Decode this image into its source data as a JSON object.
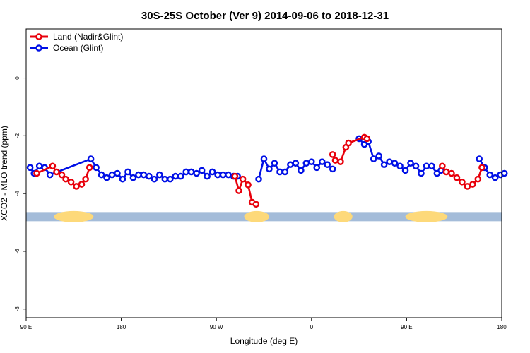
{
  "chart_data": {
    "type": "line",
    "title": "30S-25S October (Ver 9)   2014-09-06 to 2018-12-31",
    "xlabel": "Longitude (deg E)",
    "ylabel": "XCO2 - MLO trend (ppm)",
    "xlim": [
      90,
      450
    ],
    "ylim": [
      -8.3,
      1.7
    ],
    "xticks": [
      90,
      162,
      234,
      306,
      378,
      450
    ],
    "xtick_labels": [
      "90 E",
      "180",
      "90 W",
      "0",
      "90 E",
      "180"
    ],
    "yticks": [
      0,
      -2,
      -4,
      -6,
      -8
    ],
    "ytick_labels": [
      "0",
      "-2",
      "-4",
      "-6",
      "-8"
    ],
    "grid": false,
    "legend_position": "top-left",
    "land_band": {
      "y": -4.8,
      "ocean_color": "#a4bcd9",
      "land_color": "#fdd97a",
      "land_ranges": [
        [
          111,
          141
        ],
        [
          255,
          274
        ],
        [
          323,
          337
        ],
        [
          377,
          409
        ]
      ]
    },
    "series": [
      {
        "name": "Land (Nadir&Glint)",
        "color": "#e8000b",
        "segments": [
          [
            [
              98,
              -3.3
            ],
            [
              110,
              -3.05
            ],
            [
              113,
              -3.25
            ],
            [
              117,
              -3.35
            ],
            [
              120,
              -3.5
            ],
            [
              124,
              -3.6
            ],
            [
              128,
              -3.75
            ],
            [
              132,
              -3.68
            ],
            [
              135,
              -3.5
            ],
            [
              138,
              -3.1
            ]
          ],
          [
            [
              248,
              -3.4
            ],
            [
              251,
              -3.9
            ],
            [
              254,
              -3.5
            ],
            [
              258,
              -3.7
            ],
            [
              261,
              -4.3
            ],
            [
              264,
              -4.37
            ]
          ],
          [
            [
              322,
              -2.65
            ],
            [
              324,
              -2.85
            ],
            [
              328,
              -2.9
            ],
            [
              332,
              -2.4
            ],
            [
              334,
              -2.25
            ],
            [
              346,
              -2.05
            ],
            [
              348,
              -2.1
            ]
          ],
          [
            [
              405,
              -3.05
            ],
            [
              408,
              -3.25
            ],
            [
              412,
              -3.3
            ],
            [
              416,
              -3.45
            ],
            [
              420,
              -3.6
            ],
            [
              424,
              -3.75
            ],
            [
              428,
              -3.68
            ],
            [
              432,
              -3.5
            ],
            [
              435,
              -3.1
            ]
          ]
        ]
      },
      {
        "name": "Ocean (Glint)",
        "color": "#0010e6",
        "segments": [
          [
            [
              93,
              -3.1
            ],
            [
              96,
              -3.3
            ],
            [
              100,
              -3.05
            ],
            [
              104,
              -3.1
            ],
            [
              108,
              -3.35
            ],
            [
              139,
              -2.8
            ],
            [
              143,
              -3.1
            ],
            [
              147,
              -3.35
            ],
            [
              151,
              -3.45
            ],
            [
              155,
              -3.35
            ],
            [
              159,
              -3.3
            ],
            [
              163,
              -3.5
            ],
            [
              167,
              -3.25
            ],
            [
              171,
              -3.45
            ],
            [
              175,
              -3.35
            ],
            [
              179,
              -3.35
            ],
            [
              183,
              -3.4
            ],
            [
              187,
              -3.5
            ],
            [
              191,
              -3.35
            ],
            [
              195,
              -3.5
            ],
            [
              199,
              -3.5
            ],
            [
              203,
              -3.4
            ],
            [
              207,
              -3.4
            ],
            [
              211,
              -3.25
            ],
            [
              215,
              -3.25
            ],
            [
              219,
              -3.3
            ],
            [
              223,
              -3.2
            ],
            [
              227,
              -3.4
            ],
            [
              231,
              -3.25
            ],
            [
              235,
              -3.35
            ],
            [
              239,
              -3.35
            ],
            [
              243,
              -3.35
            ],
            [
              247,
              -3.4
            ],
            [
              250,
              -3.4
            ]
          ],
          [
            [
              266,
              -3.5
            ],
            [
              270,
              -2.8
            ],
            [
              274,
              -3.15
            ],
            [
              278,
              -2.95
            ],
            [
              282,
              -3.25
            ],
            [
              286,
              -3.25
            ],
            [
              290,
              -3.0
            ],
            [
              294,
              -2.95
            ],
            [
              298,
              -3.2
            ],
            [
              302,
              -2.95
            ],
            [
              306,
              -2.9
            ],
            [
              310,
              -3.1
            ],
            [
              314,
              -2.9
            ],
            [
              318,
              -3.0
            ],
            [
              322,
              -3.15
            ]
          ],
          [
            [
              342,
              -2.1
            ],
            [
              346,
              -2.3
            ],
            [
              349,
              -2.2
            ],
            [
              353,
              -2.8
            ],
            [
              357,
              -2.7
            ],
            [
              361,
              -3.0
            ],
            [
              365,
              -2.9
            ],
            [
              369,
              -2.95
            ],
            [
              373,
              -3.05
            ],
            [
              377,
              -3.2
            ],
            [
              381,
              -2.95
            ],
            [
              385,
              -3.05
            ],
            [
              389,
              -3.3
            ],
            [
              393,
              -3.05
            ],
            [
              397,
              -3.05
            ],
            [
              401,
              -3.3
            ],
            [
              404,
              -3.2
            ]
          ],
          [
            [
              433,
              -2.8
            ],
            [
              437,
              -3.1
            ],
            [
              441,
              -3.35
            ],
            [
              445,
              -3.45
            ],
            [
              449,
              -3.35
            ],
            [
              452,
              -3.3
            ]
          ]
        ]
      }
    ]
  }
}
